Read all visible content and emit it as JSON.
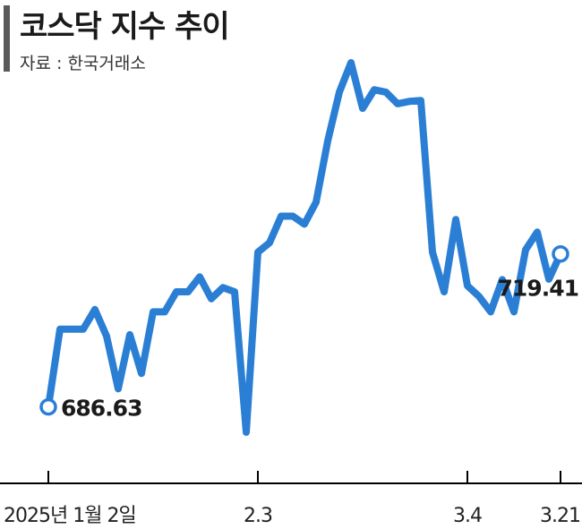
{
  "chart_data": {
    "type": "line",
    "title": "코스닥 지수 추이",
    "source": "자료 : 한국거래소",
    "xlabel": "",
    "ylabel": "",
    "x_tick_labels": [
      "2025년 1월 2일",
      "2.3",
      "3.4",
      "3.21"
    ],
    "ylim": [
      676,
      770
    ],
    "series": [
      {
        "values": [
          686.63,
          703.3,
          703.3,
          703.3,
          707.5,
          701.8,
          690.5,
          702.1,
          693.8,
          707.0,
          707.0,
          711.3,
          711.3,
          714.5,
          709.8,
          712.2,
          711.3,
          681.2,
          719.8,
          721.8,
          727.5,
          727.5,
          725.8,
          730.5,
          743.6,
          754.1,
          760.4,
          750.6,
          754.6,
          754.1,
          751.6,
          752.1,
          752.3,
          719.8,
          711.3,
          726.8,
          712.6,
          710.3,
          707.0,
          713.9,
          707.0,
          720.3,
          724.1,
          714.0,
          719.41
        ]
      }
    ],
    "annotations": [
      {
        "label": "686.63",
        "value": 686.63,
        "position": "start"
      },
      {
        "label": "719.41",
        "value": 719.41,
        "position": "end"
      }
    ],
    "line_color": "#2a7fd4",
    "grid": false,
    "legend": "none"
  }
}
